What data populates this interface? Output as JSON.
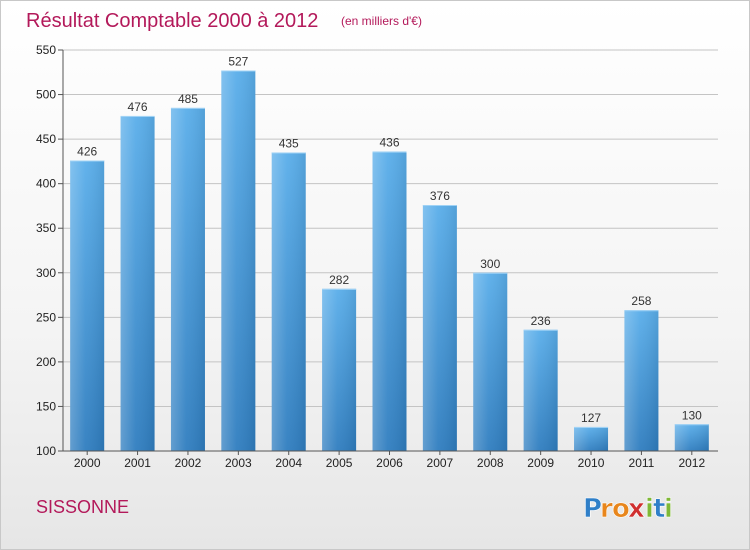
{
  "chart_data": {
    "type": "bar",
    "title": "Résultat Comptable 2000 à 2012",
    "subtitle": "(en milliers d'€)",
    "categories": [
      "2000",
      "2001",
      "2002",
      "2003",
      "2004",
      "2005",
      "2006",
      "2007",
      "2008",
      "2009",
      "2010",
      "2011",
      "2012"
    ],
    "values": [
      426,
      476,
      485,
      527,
      435,
      282,
      436,
      376,
      300,
      236,
      127,
      258,
      130
    ],
    "ylim": [
      100,
      550
    ],
    "yticks": [
      100,
      150,
      200,
      250,
      300,
      350,
      400,
      450,
      500,
      550
    ],
    "grid": true,
    "xlabel": "",
    "ylabel": ""
  },
  "commune": "SISSONNE",
  "brand": {
    "letters": [
      "P",
      "r",
      "o",
      "x",
      "i",
      "t",
      "i"
    ],
    "colors": [
      "#2f7fc8",
      "#e8861c",
      "#e8861c",
      "#d02f2f",
      "#7fb837",
      "#2f7fc8",
      "#7fb837"
    ]
  },
  "colors": {
    "bar_top": "#5aaeea",
    "bar_bottom": "#2f7dbf",
    "accent": "#b3195a"
  }
}
